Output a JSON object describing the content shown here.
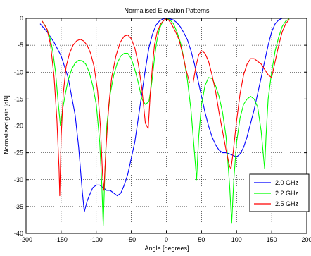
{
  "chart_data": {
    "type": "line",
    "title": "Normalised Elevation Patterns",
    "xlabel": "Angle [degrees]",
    "ylabel": "Normalised gain [dB]",
    "xlim": [
      -200,
      200
    ],
    "ylim": [
      -40,
      0
    ],
    "xticks": [
      -200,
      -150,
      -100,
      -50,
      0,
      50,
      100,
      150,
      200
    ],
    "yticks": [
      0,
      -5,
      -10,
      -15,
      -20,
      -25,
      -30,
      -35,
      -40
    ],
    "grid": true,
    "legend_position": "bottom-right",
    "series": [
      {
        "name": "2.0 GHz",
        "color": "#0000ff",
        "x": [
          -180,
          -170,
          -160,
          -150,
          -140,
          -130,
          -125,
          -120,
          -117,
          -113,
          -110,
          -105,
          -100,
          -95,
          -90,
          -85,
          -80,
          -75,
          -70,
          -65,
          -60,
          -55,
          -50,
          -45,
          -40,
          -35,
          -30,
          -25,
          -20,
          -15,
          -10,
          -5,
          0,
          5,
          10,
          15,
          20,
          25,
          30,
          35,
          40,
          45,
          50,
          55,
          60,
          65,
          70,
          75,
          80,
          85,
          90,
          95,
          100,
          105,
          110,
          115,
          120,
          125,
          130,
          135,
          140,
          145,
          150,
          155,
          160,
          165,
          170,
          175
        ],
        "y": [
          -1,
          -2.5,
          -4.5,
          -7,
          -11,
          -18,
          -24,
          -32,
          -36,
          -34,
          -33,
          -31.5,
          -31,
          -31,
          -31.5,
          -32,
          -32,
          -32.5,
          -33,
          -32.5,
          -31,
          -29,
          -26,
          -23,
          -18.5,
          -14,
          -9.5,
          -5.5,
          -3,
          -1.3,
          -0.5,
          -0.1,
          0,
          -0.1,
          -0.3,
          -0.8,
          -1.6,
          -2.7,
          -4,
          -6,
          -8.5,
          -11.5,
          -14.5,
          -17.5,
          -20,
          -22,
          -23.5,
          -24.5,
          -25,
          -25,
          -25.2,
          -25.5,
          -25.8,
          -25.2,
          -24,
          -22,
          -19.5,
          -17,
          -14,
          -11,
          -8,
          -5,
          -2.5,
          -1,
          -0.3,
          0,
          0,
          0
        ]
      },
      {
        "name": "2.2 GHz",
        "color": "#00ff00",
        "x": [
          -177,
          -172,
          -167,
          -162,
          -158,
          -154,
          -151,
          -148,
          -144,
          -140,
          -135,
          -130,
          -125,
          -120,
          -115,
          -110,
          -105,
          -100,
          -95,
          -92,
          -90,
          -88,
          -85,
          -80,
          -75,
          -70,
          -65,
          -60,
          -55,
          -50,
          -45,
          -40,
          -35,
          -30,
          -25,
          -22,
          -20,
          -17,
          -14,
          -10,
          -5,
          0,
          5,
          10,
          15,
          20,
          25,
          30,
          35,
          40,
          43,
          46,
          50,
          55,
          60,
          65,
          70,
          75,
          80,
          85,
          90,
          93,
          96,
          100,
          105,
          110,
          115,
          120,
          125,
          130,
          135,
          140,
          142,
          145,
          150,
          155,
          160,
          165,
          170,
          175
        ],
        "y": [
          -0.5,
          -1.5,
          -3,
          -6,
          -10,
          -16,
          -20,
          -17,
          -14,
          -11.5,
          -9.5,
          -8.3,
          -7.8,
          -7.9,
          -8.5,
          -10,
          -12.5,
          -16,
          -23,
          -31,
          -38.5,
          -30,
          -20,
          -14,
          -10.5,
          -8.3,
          -7,
          -6.5,
          -6.5,
          -7.5,
          -9.5,
          -12,
          -15,
          -16,
          -15.5,
          -13,
          -11,
          -7.5,
          -4.5,
          -2,
          -0.5,
          -0.05,
          -0.3,
          -1,
          -2.5,
          -4.5,
          -7.5,
          -11.5,
          -17,
          -25,
          -30,
          -22,
          -16,
          -12.5,
          -11,
          -11.2,
          -12.5,
          -14.5,
          -17.5,
          -22,
          -31,
          -38,
          -30,
          -23,
          -18.5,
          -16,
          -15,
          -14.5,
          -15,
          -16.5,
          -21,
          -28,
          -22,
          -15,
          -10,
          -6,
          -3.5,
          -1.5,
          -0.5,
          -0.1
        ]
      },
      {
        "name": "2.5 GHz",
        "color": "#ff0000",
        "x": [
          -177,
          -170,
          -165,
          -160,
          -156,
          -153,
          -152,
          -150,
          -147,
          -143,
          -138,
          -133,
          -128,
          -123,
          -118,
          -113,
          -108,
          -103,
          -98,
          -94,
          -91,
          -89,
          -86,
          -82,
          -78,
          -72,
          -66,
          -60,
          -55,
          -50,
          -45,
          -40,
          -35,
          -30,
          -26,
          -23,
          -20,
          -17,
          -13,
          -8,
          -3,
          0,
          3,
          8,
          13,
          18,
          23,
          28,
          33,
          38,
          42,
          46,
          50,
          55,
          60,
          65,
          70,
          75,
          80,
          85,
          90,
          92,
          95,
          100,
          105,
          110,
          115,
          120,
          125,
          130,
          135,
          140,
          145,
          150,
          155,
          160,
          165,
          170,
          175
        ],
        "y": [
          -0.5,
          -2,
          -5,
          -11,
          -19,
          -28,
          -33,
          -22,
          -14,
          -9,
          -6.5,
          -5,
          -4.2,
          -3.9,
          -4.2,
          -5,
          -6.5,
          -9,
          -13.5,
          -20,
          -29,
          -32,
          -24,
          -16,
          -11,
          -7,
          -4.5,
          -3.3,
          -3.1,
          -3.8,
          -5.5,
          -8.5,
          -13,
          -19.5,
          -20.5,
          -14,
          -9,
          -5,
          -2.5,
          -1,
          -0.3,
          -0.1,
          -0.3,
          -1.2,
          -2.5,
          -4,
          -6.5,
          -9.5,
          -12,
          -12,
          -9,
          -6.8,
          -6,
          -6.5,
          -8,
          -10.5,
          -13.5,
          -17.5,
          -21,
          -24.5,
          -27.5,
          -28,
          -25,
          -19,
          -14,
          -10.5,
          -8.5,
          -7.5,
          -7.5,
          -8,
          -8.5,
          -9.5,
          -10.5,
          -11,
          -8,
          -5,
          -2.5,
          -1,
          -0.2
        ]
      }
    ]
  }
}
